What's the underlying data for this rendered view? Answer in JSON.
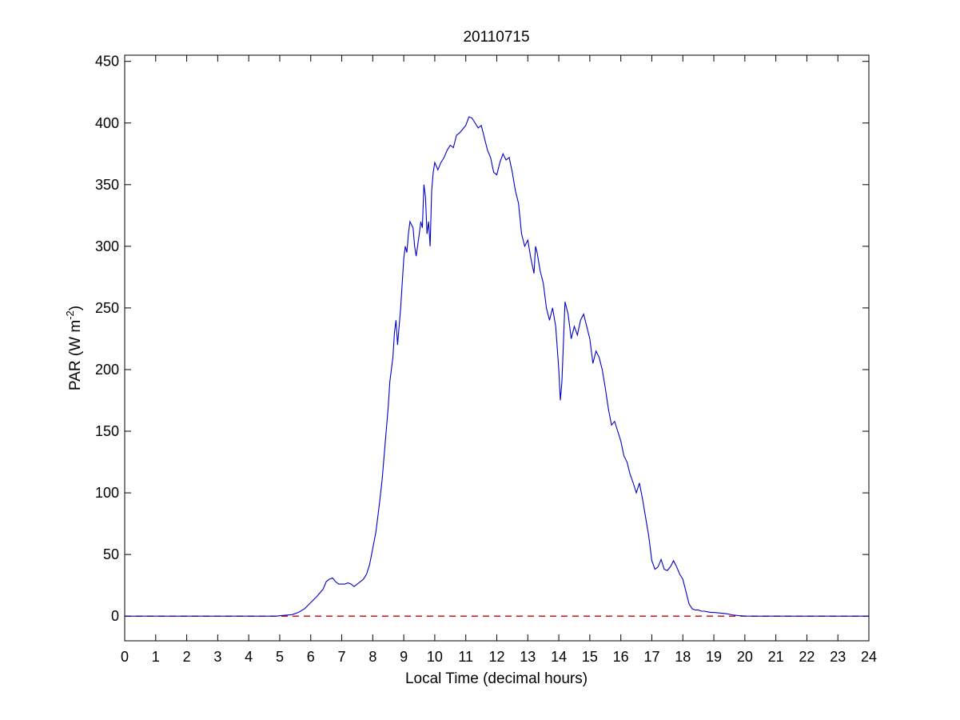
{
  "chart_data": {
    "type": "line",
    "title": "20110715",
    "xlabel": "Local Time (decimal hours)",
    "ylabel_main": "PAR (W m",
    "ylabel_sup": "-2",
    "ylabel_end": ")",
    "xlim": [
      0,
      24
    ],
    "ylim": [
      -20,
      455
    ],
    "xticks": [
      "0",
      "1",
      "2",
      "3",
      "4",
      "5",
      "6",
      "7",
      "8",
      "9",
      "10",
      "11",
      "12",
      "13",
      "14",
      "15",
      "16",
      "17",
      "18",
      "19",
      "20",
      "21",
      "22",
      "23",
      "24"
    ],
    "yticks": [
      "0",
      "50",
      "100",
      "150",
      "200",
      "250",
      "300",
      "350",
      "400",
      "450"
    ],
    "grid": false,
    "colors": {
      "series": "#0000cc",
      "baseline": "#cc0000"
    },
    "baseline": {
      "y": 0,
      "style": "dashed"
    },
    "series": [
      {
        "points": [
          [
            0,
            0
          ],
          [
            4.9,
            0
          ],
          [
            5.0,
            0.3
          ],
          [
            5.2,
            0.8
          ],
          [
            5.4,
            1.2
          ],
          [
            5.6,
            3
          ],
          [
            5.8,
            6
          ],
          [
            6.0,
            11
          ],
          [
            6.2,
            16
          ],
          [
            6.4,
            22
          ],
          [
            6.5,
            28
          ],
          [
            6.6,
            30
          ],
          [
            6.7,
            31
          ],
          [
            6.8,
            28
          ],
          [
            6.9,
            26
          ],
          [
            7.0,
            26
          ],
          [
            7.1,
            26
          ],
          [
            7.2,
            27
          ],
          [
            7.3,
            26
          ],
          [
            7.4,
            24
          ],
          [
            7.5,
            26
          ],
          [
            7.6,
            28
          ],
          [
            7.7,
            30
          ],
          [
            7.8,
            34
          ],
          [
            7.9,
            42
          ],
          [
            8.0,
            55
          ],
          [
            8.1,
            68
          ],
          [
            8.2,
            88
          ],
          [
            8.3,
            110
          ],
          [
            8.4,
            140
          ],
          [
            8.5,
            170
          ],
          [
            8.55,
            190
          ],
          [
            8.6,
            200
          ],
          [
            8.65,
            210
          ],
          [
            8.7,
            230
          ],
          [
            8.75,
            240
          ],
          [
            8.8,
            220
          ],
          [
            8.85,
            235
          ],
          [
            8.9,
            250
          ],
          [
            8.95,
            270
          ],
          [
            9.0,
            290
          ],
          [
            9.05,
            300
          ],
          [
            9.1,
            295
          ],
          [
            9.15,
            310
          ],
          [
            9.2,
            320
          ],
          [
            9.3,
            315
          ],
          [
            9.35,
            300
          ],
          [
            9.4,
            292
          ],
          [
            9.5,
            310
          ],
          [
            9.55,
            320
          ],
          [
            9.6,
            315
          ],
          [
            9.65,
            350
          ],
          [
            9.7,
            340
          ],
          [
            9.75,
            310
          ],
          [
            9.8,
            320
          ],
          [
            9.85,
            300
          ],
          [
            9.9,
            345
          ],
          [
            9.95,
            360
          ],
          [
            10.0,
            368
          ],
          [
            10.1,
            362
          ],
          [
            10.2,
            368
          ],
          [
            10.3,
            372
          ],
          [
            10.4,
            378
          ],
          [
            10.5,
            382
          ],
          [
            10.6,
            380
          ],
          [
            10.7,
            390
          ],
          [
            10.8,
            392
          ],
          [
            10.9,
            395
          ],
          [
            11.0,
            398
          ],
          [
            11.1,
            405
          ],
          [
            11.2,
            404
          ],
          [
            11.3,
            400
          ],
          [
            11.4,
            396
          ],
          [
            11.5,
            398
          ],
          [
            11.6,
            388
          ],
          [
            11.7,
            378
          ],
          [
            11.8,
            372
          ],
          [
            11.9,
            360
          ],
          [
            12.0,
            358
          ],
          [
            12.1,
            368
          ],
          [
            12.2,
            375
          ],
          [
            12.3,
            370
          ],
          [
            12.4,
            372
          ],
          [
            12.5,
            360
          ],
          [
            12.6,
            345
          ],
          [
            12.7,
            335
          ],
          [
            12.8,
            310
          ],
          [
            12.9,
            300
          ],
          [
            13.0,
            305
          ],
          [
            13.1,
            290
          ],
          [
            13.2,
            278
          ],
          [
            13.25,
            300
          ],
          [
            13.3,
            295
          ],
          [
            13.4,
            280
          ],
          [
            13.5,
            270
          ],
          [
            13.6,
            250
          ],
          [
            13.7,
            240
          ],
          [
            13.8,
            250
          ],
          [
            13.9,
            235
          ],
          [
            14.0,
            200
          ],
          [
            14.05,
            175
          ],
          [
            14.1,
            190
          ],
          [
            14.2,
            255
          ],
          [
            14.3,
            245
          ],
          [
            14.4,
            225
          ],
          [
            14.5,
            235
          ],
          [
            14.6,
            228
          ],
          [
            14.7,
            240
          ],
          [
            14.8,
            245
          ],
          [
            14.9,
            235
          ],
          [
            15.0,
            225
          ],
          [
            15.1,
            205
          ],
          [
            15.2,
            215
          ],
          [
            15.3,
            210
          ],
          [
            15.4,
            200
          ],
          [
            15.5,
            185
          ],
          [
            15.6,
            168
          ],
          [
            15.7,
            155
          ],
          [
            15.8,
            158
          ],
          [
            15.9,
            150
          ],
          [
            16.0,
            142
          ],
          [
            16.1,
            130
          ],
          [
            16.2,
            125
          ],
          [
            16.3,
            115
          ],
          [
            16.4,
            108
          ],
          [
            16.5,
            100
          ],
          [
            16.6,
            108
          ],
          [
            16.7,
            95
          ],
          [
            16.8,
            80
          ],
          [
            16.9,
            65
          ],
          [
            17.0,
            45
          ],
          [
            17.1,
            38
          ],
          [
            17.2,
            40
          ],
          [
            17.3,
            46
          ],
          [
            17.4,
            38
          ],
          [
            17.5,
            37
          ],
          [
            17.6,
            40
          ],
          [
            17.7,
            45
          ],
          [
            17.8,
            40
          ],
          [
            17.9,
            34
          ],
          [
            18.0,
            30
          ],
          [
            18.1,
            20
          ],
          [
            18.2,
            10
          ],
          [
            18.3,
            6
          ],
          [
            18.4,
            5
          ],
          [
            18.5,
            5
          ],
          [
            18.6,
            4
          ],
          [
            18.7,
            4
          ],
          [
            18.8,
            3.5
          ],
          [
            18.9,
            3
          ],
          [
            19.0,
            3
          ],
          [
            19.2,
            2.5
          ],
          [
            19.4,
            2
          ],
          [
            19.6,
            1
          ],
          [
            19.8,
            0.4
          ],
          [
            20.0,
            0.1
          ],
          [
            20.2,
            0
          ],
          [
            24,
            0
          ]
        ]
      }
    ]
  }
}
